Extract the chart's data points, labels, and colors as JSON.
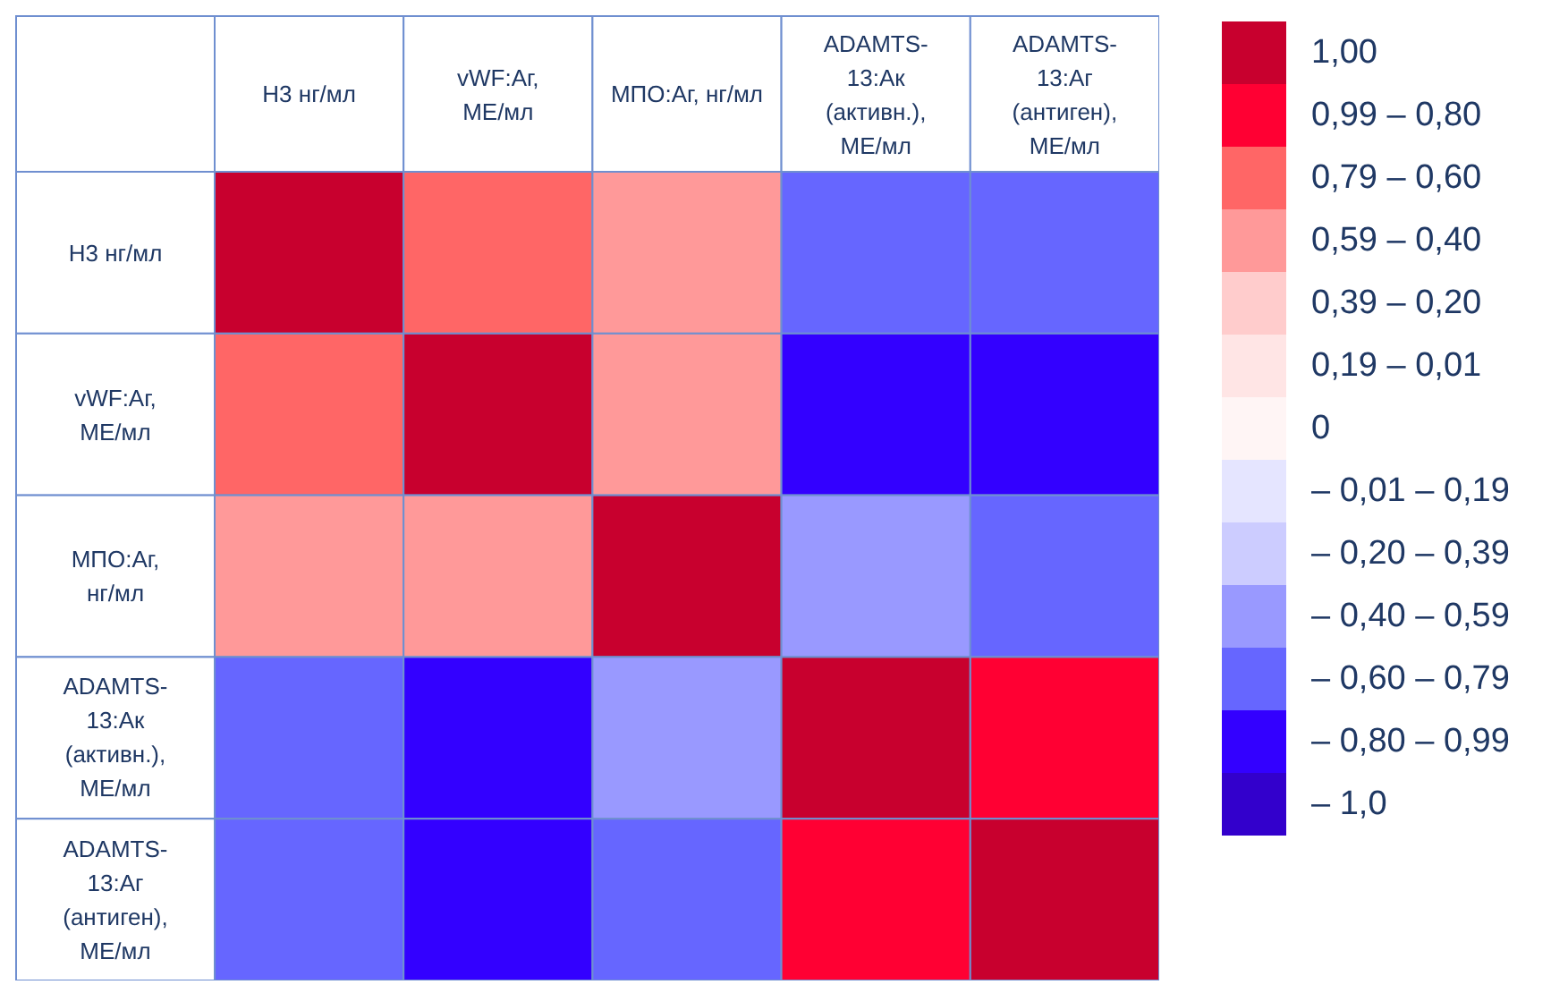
{
  "chart_data": {
    "type": "heatmap",
    "categories": [
      "Н3 нг/мл",
      "vWF:Аг, МЕ/мл",
      "МПО:Аг, нг/мл",
      "ADAMTS-13:Ак (активн.), МЕ/мл",
      "ADAMTS-13:Аг (антиген), МЕ/мл"
    ],
    "y_categories": [
      "Н3 нг/мл",
      "vWF:Аг, МЕ/мл",
      "МПО:Аг, нг/мл",
      "ADAMTS-13:Ак (активн.), МЕ/мл",
      "ADAMTS-13:Аг (антиген), МЕ/мл"
    ],
    "cells": [
      [
        1,
        0.7,
        0.5,
        -0.7,
        -0.7
      ],
      [
        0.7,
        1,
        0.5,
        -0.9,
        -0.9
      ],
      [
        0.5,
        0.5,
        1,
        -0.5,
        -0.7
      ],
      [
        -0.7,
        -0.9,
        -0.5,
        1,
        0.9
      ],
      [
        -0.7,
        -0.9,
        -0.7,
        0.9,
        1
      ]
    ],
    "clim": [
      1.08,
      -1.08
    ],
    "cticks": [
      {
        "value": 1,
        "label": "1,00"
      },
      {
        "value": 0.83,
        "label": "0,99 – 0,80"
      },
      {
        "value": 0.67,
        "label": "0,79 – 0,60"
      },
      {
        "value": 0.5,
        "label": "0,59 – 0,40"
      },
      {
        "value": 0.33,
        "label": "0,39 – 0,20"
      },
      {
        "value": 0.17,
        "label": "0,19 – 0,01"
      },
      {
        "value": 0,
        "label": "0"
      },
      {
        "value": -0.17,
        "label": "– 0,01 – 0,19"
      },
      {
        "value": -0.33,
        "label": "– 0,20 – 0,39"
      },
      {
        "value": -0.5,
        "label": "– 0,40 – 0,59"
      },
      {
        "value": -0.67,
        "label": "– 0,60 – 0,79"
      },
      {
        "value": -0.83,
        "label": "– 0,80 – 0,99"
      },
      {
        "value": -1,
        "label": "– 1,0"
      }
    ],
    "colors": [
      "#c8002e",
      "#ff0033",
      "#ff6666",
      "#ff9999",
      "#ffcccc",
      "#ffe5e5",
      "#fff5f5",
      "#e5e5ff",
      "#ccccff",
      "#9999ff",
      "#6666ff",
      "#3300ff",
      "#3300cc"
    ]
  }
}
